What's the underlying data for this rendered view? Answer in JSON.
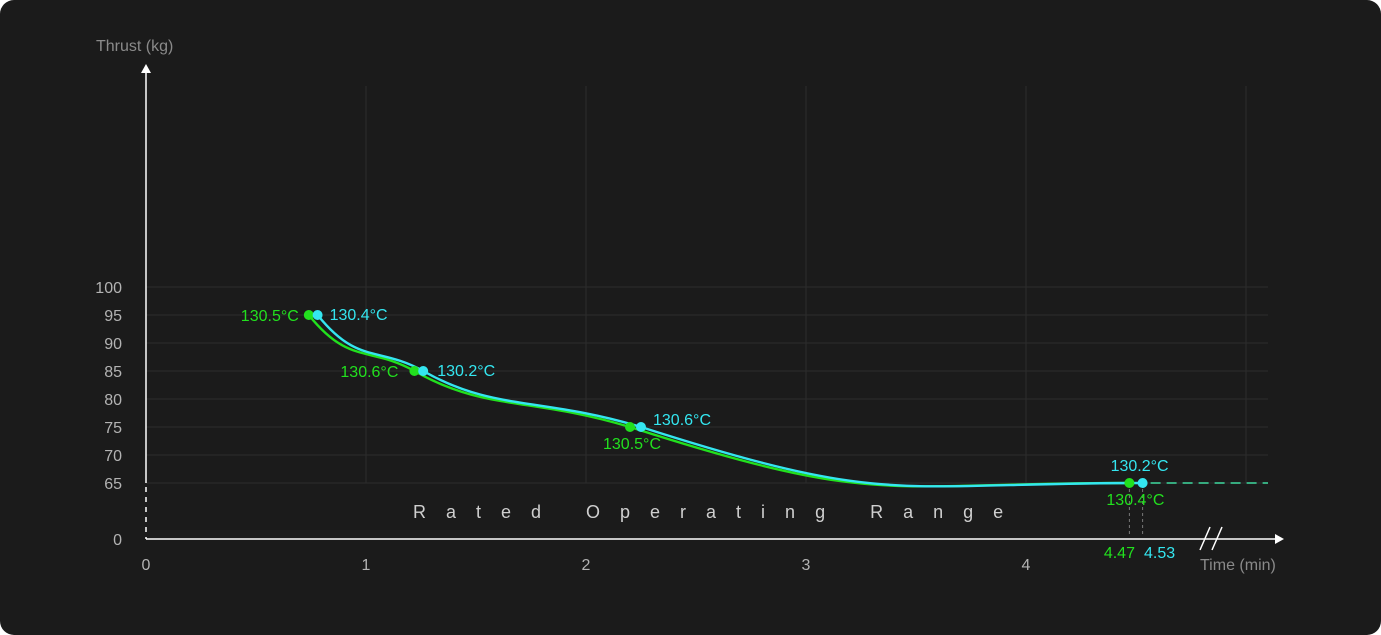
{
  "chart_data": {
    "type": "line",
    "xlabel": "Time  (min)",
    "ylabel": "Thrust  (kg)",
    "xlim": [
      0,
      5
    ],
    "ylim": [
      0,
      100
    ],
    "x_ticks": [
      "0",
      "1",
      "2",
      "3",
      "4"
    ],
    "y_ticks": [
      "0",
      "65",
      "70",
      "75",
      "80",
      "85",
      "90",
      "95",
      "100"
    ],
    "grid": true,
    "band_label": "Rated Operating Range",
    "series": [
      {
        "color": "#22e01e",
        "points": [
          {
            "x": 0.74,
            "y": 95,
            "label": "130.5°C"
          },
          {
            "x": 1.22,
            "y": 85,
            "label": "130.6°C"
          },
          {
            "x": 2.2,
            "y": 75,
            "label": "130.5°C"
          },
          {
            "x": 4.47,
            "y": 65,
            "label": "130.4°C"
          }
        ],
        "end_marker": "4.47"
      },
      {
        "color": "#34e6f0",
        "points": [
          {
            "x": 0.78,
            "y": 95,
            "label": "130.4°C"
          },
          {
            "x": 1.26,
            "y": 85,
            "label": "130.2°C"
          },
          {
            "x": 2.25,
            "y": 75,
            "label": "130.6°C"
          },
          {
            "x": 4.53,
            "y": 65,
            "label": "130.2°C"
          }
        ],
        "end_marker": "4.53"
      }
    ]
  }
}
